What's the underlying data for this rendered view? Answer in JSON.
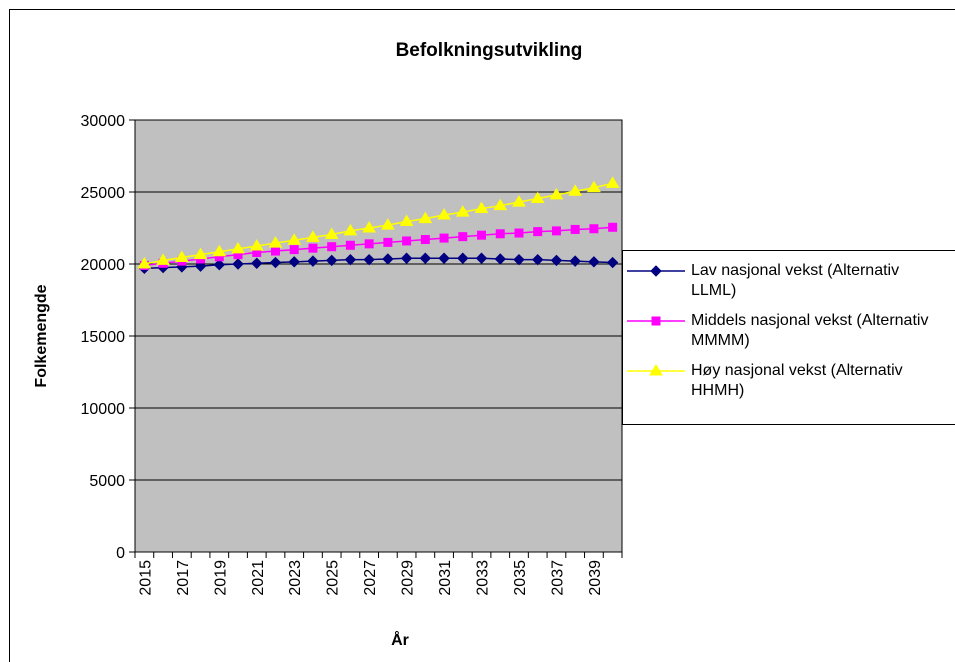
{
  "chart_data": {
    "type": "line",
    "title": "Befolkningsutvikling",
    "x_label": "År",
    "y_label": "Folkemengde",
    "categories": [
      "2015",
      null,
      "2017",
      null,
      "2019",
      null,
      "2021",
      null,
      "2023",
      null,
      "2025",
      null,
      "2027",
      null,
      "2029",
      null,
      "2031",
      null,
      "2033",
      null,
      "2035",
      null,
      "2037",
      null,
      "2039",
      null
    ],
    "series": [
      {
        "name": "Lav nasjonal vekst (Alternativ LLML)",
        "color": "#000080",
        "marker": "diamond",
        "values": [
          19700,
          19750,
          19800,
          19850,
          19950,
          20000,
          20050,
          20100,
          20150,
          20200,
          20250,
          20300,
          20300,
          20350,
          20400,
          20400,
          20400,
          20400,
          20400,
          20350,
          20300,
          20300,
          20250,
          20200,
          20150,
          20100
        ]
      },
      {
        "name": "Middels nasjonal vekst (Alternativ MMMM)",
        "color": "#ff00ff",
        "marker": "square",
        "values": [
          19900,
          20050,
          20200,
          20350,
          20500,
          20650,
          20800,
          20900,
          21000,
          21100,
          21200,
          21300,
          21400,
          21500,
          21600,
          21700,
          21800,
          21900,
          22000,
          22100,
          22150,
          22250,
          22300,
          22400,
          22450,
          22550
        ]
      },
      {
        "name": "Høy nasjonal vekst (Alternativ HHMH)",
        "color": "#ffff00",
        "marker": "triangle",
        "values": [
          20000,
          20250,
          20450,
          20650,
          20850,
          21050,
          21250,
          21450,
          21650,
          21850,
          22050,
          22300,
          22500,
          22700,
          22950,
          23150,
          23400,
          23600,
          23850,
          24050,
          24300,
          24550,
          24800,
          25050,
          25300,
          25600
        ]
      }
    ],
    "ylim": [
      0,
      30000
    ],
    "yticks": [
      0,
      5000,
      10000,
      15000,
      20000,
      25000,
      30000
    ],
    "grid": true,
    "plot_background": "#c0c0c0",
    "legend": "right"
  }
}
